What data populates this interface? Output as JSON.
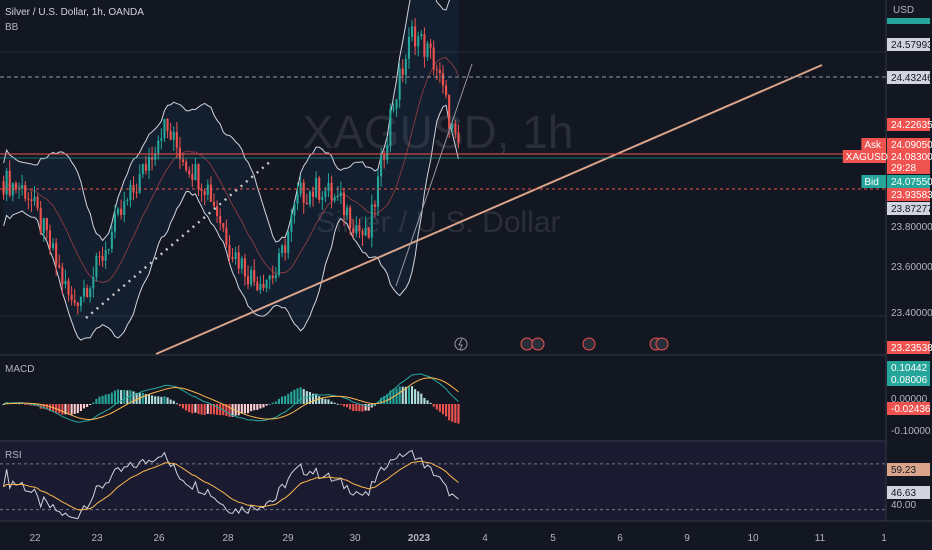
{
  "header": {
    "title": "Silver / U.S. Dollar, 1h, OANDA",
    "indicator": "BB",
    "watermark_symbol": "XAGUSD, 1h",
    "watermark_name": "Silver / U.S. Dollar"
  },
  "currency": "USD",
  "colors": {
    "bg": "#131722",
    "up": "#26a69a",
    "down": "#ef5350",
    "trend": "#d9a48a",
    "bb": "#d1d4dc",
    "dotted": "#c8c8c8"
  },
  "axis": {
    "price_ticks": [
      "23.80000",
      "23.60000",
      "23.40000"
    ],
    "x_labels": [
      "22",
      "23",
      "26",
      "28",
      "29",
      "30",
      "2023",
      "4",
      "5",
      "6",
      "9",
      "10",
      "11",
      "1"
    ]
  },
  "price_tags": [
    {
      "text": "24.57993",
      "style": "light"
    },
    {
      "text": "24.43246",
      "style": "light"
    },
    {
      "text": "24.22635",
      "style": "red"
    },
    {
      "text": "24.09050",
      "style": "red",
      "label": "Ask"
    },
    {
      "text": "24.08300",
      "style": "red",
      "label": "XAGUSD",
      "sub": "29:28"
    },
    {
      "text": "24.07550",
      "style": "green",
      "label": "Bid"
    },
    {
      "text": "23.93583",
      "style": "red"
    },
    {
      "text": "23.87277",
      "style": "light"
    },
    {
      "text": "23.23538",
      "style": "red"
    }
  ],
  "macd": {
    "label": "MACD",
    "tags": [
      "0.10442",
      "0.08006",
      "-0.02436"
    ],
    "ticks": [
      "0.00000",
      "-0.10000"
    ]
  },
  "rsi": {
    "label": "RSI",
    "tags": [
      "59.23",
      "46.63"
    ],
    "ticks": [
      "40.00"
    ]
  },
  "chart_data": {
    "type": "candlestick",
    "symbol": "XAGUSD",
    "timeframe": "1h",
    "ylim": [
      23.2,
      24.72
    ],
    "close_path": [
      [
        "Dec 21",
        23.96
      ],
      [
        "Dec 22",
        23.92
      ],
      [
        "Dec 22",
        23.68
      ],
      [
        "Dec 22",
        23.41
      ],
      [
        "Dec 23",
        23.55
      ],
      [
        "Dec 23",
        23.78
      ],
      [
        "Dec 26",
        23.97
      ],
      [
        "Dec 26",
        24.21
      ],
      [
        "Dec 27",
        24.05
      ],
      [
        "Dec 27",
        23.93
      ],
      [
        "Dec 28",
        23.66
      ],
      [
        "Dec 28",
        23.52
      ],
      [
        "Dec 29",
        23.55
      ],
      [
        "Dec 29",
        23.9
      ],
      [
        "Dec 30",
        23.93
      ],
      [
        "Dec 30",
        23.84
      ],
      [
        "Jan 3",
        23.69
      ],
      [
        "Jan 3",
        24.25
      ],
      [
        "Jan 3",
        24.63
      ],
      [
        "Jan 3",
        24.48
      ],
      [
        "Jan 3",
        24.08
      ]
    ]
  }
}
